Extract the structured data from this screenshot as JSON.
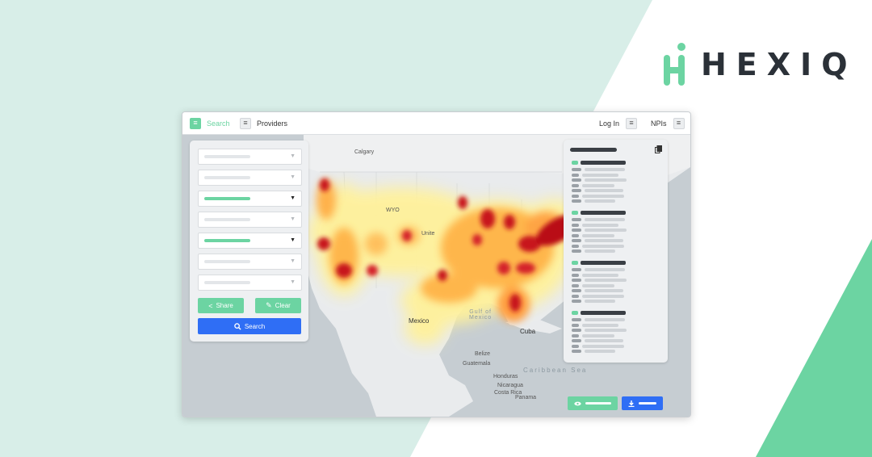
{
  "brand": {
    "name": "HEXIQ",
    "accent": "#6cd4a2",
    "text_color": "#2b3138"
  },
  "background": {
    "left_tint": "#d8eee8",
    "right_accent": "#6cd4a2"
  },
  "window": {
    "nav": {
      "search_label": "Search",
      "providers_label": "Providers",
      "login_label": "Log In",
      "npis_label": "NPIs",
      "menu_icon": "menu-icon"
    },
    "map": {
      "labels": {
        "calgary": "Calgary",
        "mexico": "Mexico",
        "gulf_of_mexico": "Gulf of\nMexico",
        "cuba": "Cuba",
        "caribbean_sea": "Caribbean Sea",
        "belize": "Belize",
        "guatemala": "Guatemala",
        "honduras": "Honduras",
        "nicaragua": "Nicaragua",
        "costa_rica": "Costa Rica",
        "panama": "Panama",
        "wyo": "WYO",
        "united": "Unite"
      }
    },
    "filters": {
      "dropdowns": [
        {
          "selected": false
        },
        {
          "selected": false
        },
        {
          "selected": true
        },
        {
          "selected": false
        },
        {
          "selected": true
        },
        {
          "selected": false
        },
        {
          "selected": false
        }
      ],
      "share_label": "Share",
      "clear_label": "Clear",
      "search_button_label": "Search",
      "share_icon": "share-icon",
      "clear_icon": "broom-icon",
      "search_icon": "magnifier-icon"
    },
    "results": {
      "copy_icon": "copy-icon",
      "group_count": 4
    },
    "footer": {
      "view_icon": "eye-icon",
      "download_icon": "download-icon"
    }
  }
}
